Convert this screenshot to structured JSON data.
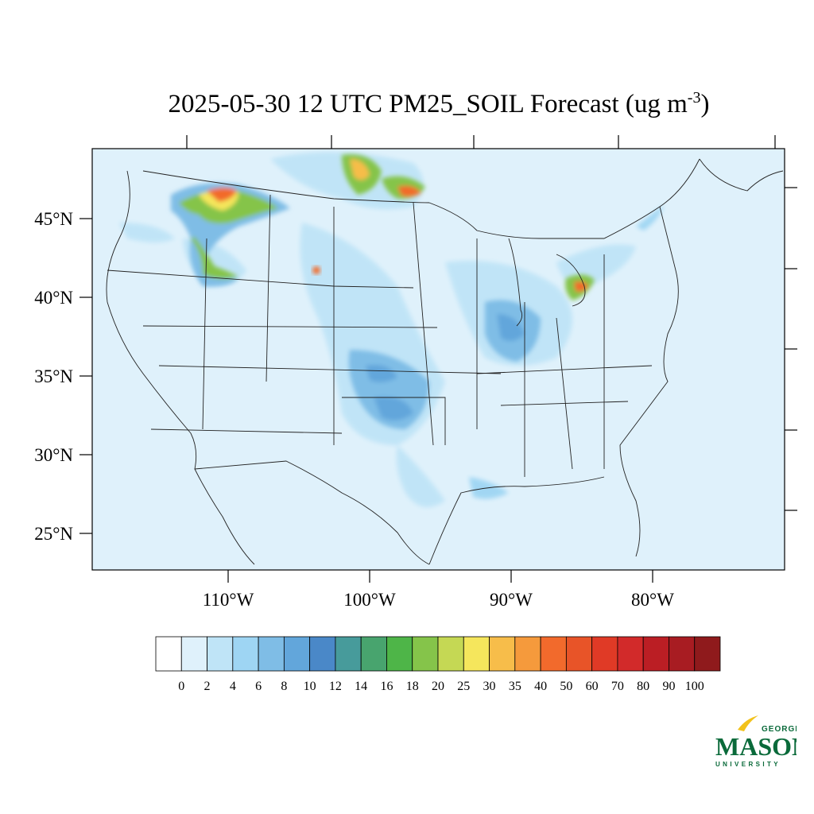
{
  "title": {
    "text": "2025-05-30 12 UTC PM25_SOIL Forecast (ug m",
    "superscript": "-3",
    "close": ")"
  },
  "map": {
    "background_color": "#dff1fb",
    "lat_labels": [
      "45°N",
      "40°N",
      "35°N",
      "30°N",
      "25°N"
    ],
    "lon_labels": [
      "110°W",
      "100°W",
      "90°W",
      "80°W"
    ]
  },
  "colorbar": {
    "labels": [
      "0",
      "2",
      "4",
      "6",
      "8",
      "10",
      "12",
      "14",
      "16",
      "18",
      "20",
      "25",
      "30",
      "35",
      "40",
      "50",
      "60",
      "70",
      "80",
      "90",
      "100"
    ],
    "colors": [
      "#ffffff",
      "#dff1fb",
      "#bfe4f7",
      "#9ed5f3",
      "#7fbde6",
      "#62a6db",
      "#4a88c8",
      "#479b9b",
      "#48a46e",
      "#4eb548",
      "#85c44a",
      "#c5d854",
      "#f5e65c",
      "#f7bd4a",
      "#f59a3c",
      "#f26a2c",
      "#e85428",
      "#e03a26",
      "#d22a2a",
      "#bb1e24",
      "#a81c22",
      "#8f1a1c"
    ]
  },
  "logo": {
    "top": "GEORGE",
    "main": "MASON",
    "bottom": "UNIVERSITY",
    "green": "#0a6a3a",
    "gold": "#f2c21b"
  }
}
